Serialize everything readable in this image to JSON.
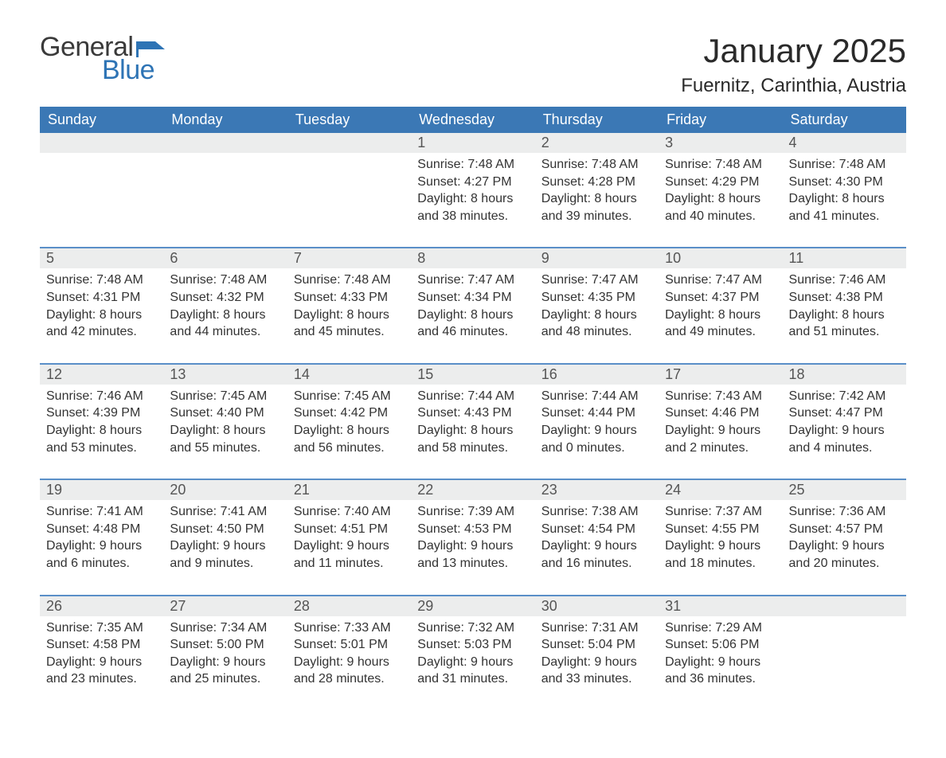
{
  "brand": {
    "part1": "General",
    "part2": "Blue"
  },
  "colors": {
    "header_bg": "#3b78b5",
    "row_grey": "#eceded",
    "row_border": "#5a8fc8",
    "logo_blue": "#2e74b5",
    "text": "#333333",
    "background": "#ffffff"
  },
  "title": "January 2025",
  "location": "Fuernitz, Carinthia, Austria",
  "weekdays": [
    "Sunday",
    "Monday",
    "Tuesday",
    "Wednesday",
    "Thursday",
    "Friday",
    "Saturday"
  ],
  "layout": {
    "columns": 7,
    "weeks": 5,
    "first_weekday_index": 3,
    "days_in_month": 31
  },
  "typography": {
    "title_fontsize": 42,
    "location_fontsize": 24,
    "header_fontsize": 18,
    "daynum_fontsize": 18,
    "body_fontsize": 16,
    "font_family": "Arial"
  },
  "days": {
    "1": {
      "sunrise": "7:48 AM",
      "sunset": "4:27 PM",
      "daylight": "8 hours and 38 minutes."
    },
    "2": {
      "sunrise": "7:48 AM",
      "sunset": "4:28 PM",
      "daylight": "8 hours and 39 minutes."
    },
    "3": {
      "sunrise": "7:48 AM",
      "sunset": "4:29 PM",
      "daylight": "8 hours and 40 minutes."
    },
    "4": {
      "sunrise": "7:48 AM",
      "sunset": "4:30 PM",
      "daylight": "8 hours and 41 minutes."
    },
    "5": {
      "sunrise": "7:48 AM",
      "sunset": "4:31 PM",
      "daylight": "8 hours and 42 minutes."
    },
    "6": {
      "sunrise": "7:48 AM",
      "sunset": "4:32 PM",
      "daylight": "8 hours and 44 minutes."
    },
    "7": {
      "sunrise": "7:48 AM",
      "sunset": "4:33 PM",
      "daylight": "8 hours and 45 minutes."
    },
    "8": {
      "sunrise": "7:47 AM",
      "sunset": "4:34 PM",
      "daylight": "8 hours and 46 minutes."
    },
    "9": {
      "sunrise": "7:47 AM",
      "sunset": "4:35 PM",
      "daylight": "8 hours and 48 minutes."
    },
    "10": {
      "sunrise": "7:47 AM",
      "sunset": "4:37 PM",
      "daylight": "8 hours and 49 minutes."
    },
    "11": {
      "sunrise": "7:46 AM",
      "sunset": "4:38 PM",
      "daylight": "8 hours and 51 minutes."
    },
    "12": {
      "sunrise": "7:46 AM",
      "sunset": "4:39 PM",
      "daylight": "8 hours and 53 minutes."
    },
    "13": {
      "sunrise": "7:45 AM",
      "sunset": "4:40 PM",
      "daylight": "8 hours and 55 minutes."
    },
    "14": {
      "sunrise": "7:45 AM",
      "sunset": "4:42 PM",
      "daylight": "8 hours and 56 minutes."
    },
    "15": {
      "sunrise": "7:44 AM",
      "sunset": "4:43 PM",
      "daylight": "8 hours and 58 minutes."
    },
    "16": {
      "sunrise": "7:44 AM",
      "sunset": "4:44 PM",
      "daylight": "9 hours and 0 minutes."
    },
    "17": {
      "sunrise": "7:43 AM",
      "sunset": "4:46 PM",
      "daylight": "9 hours and 2 minutes."
    },
    "18": {
      "sunrise": "7:42 AM",
      "sunset": "4:47 PM",
      "daylight": "9 hours and 4 minutes."
    },
    "19": {
      "sunrise": "7:41 AM",
      "sunset": "4:48 PM",
      "daylight": "9 hours and 6 minutes."
    },
    "20": {
      "sunrise": "7:41 AM",
      "sunset": "4:50 PM",
      "daylight": "9 hours and 9 minutes."
    },
    "21": {
      "sunrise": "7:40 AM",
      "sunset": "4:51 PM",
      "daylight": "9 hours and 11 minutes."
    },
    "22": {
      "sunrise": "7:39 AM",
      "sunset": "4:53 PM",
      "daylight": "9 hours and 13 minutes."
    },
    "23": {
      "sunrise": "7:38 AM",
      "sunset": "4:54 PM",
      "daylight": "9 hours and 16 minutes."
    },
    "24": {
      "sunrise": "7:37 AM",
      "sunset": "4:55 PM",
      "daylight": "9 hours and 18 minutes."
    },
    "25": {
      "sunrise": "7:36 AM",
      "sunset": "4:57 PM",
      "daylight": "9 hours and 20 minutes."
    },
    "26": {
      "sunrise": "7:35 AM",
      "sunset": "4:58 PM",
      "daylight": "9 hours and 23 minutes."
    },
    "27": {
      "sunrise": "7:34 AM",
      "sunset": "5:00 PM",
      "daylight": "9 hours and 25 minutes."
    },
    "28": {
      "sunrise": "7:33 AM",
      "sunset": "5:01 PM",
      "daylight": "9 hours and 28 minutes."
    },
    "29": {
      "sunrise": "7:32 AM",
      "sunset": "5:03 PM",
      "daylight": "9 hours and 31 minutes."
    },
    "30": {
      "sunrise": "7:31 AM",
      "sunset": "5:04 PM",
      "daylight": "9 hours and 33 minutes."
    },
    "31": {
      "sunrise": "7:29 AM",
      "sunset": "5:06 PM",
      "daylight": "9 hours and 36 minutes."
    }
  },
  "labels": {
    "sunrise": "Sunrise",
    "sunset": "Sunset",
    "daylight": "Daylight"
  }
}
